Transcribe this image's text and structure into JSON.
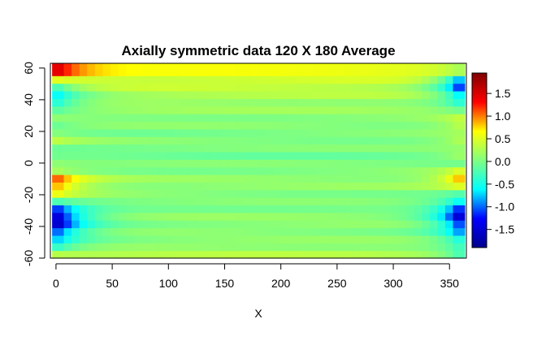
{
  "chart_data": {
    "type": "heatmap",
    "title": "Axially symmetric data 120 X 180 Average",
    "xlabel": "X",
    "ylabel": "",
    "xlim": [
      -5,
      365
    ],
    "ylim": [
      -60,
      63
    ],
    "x_ticks": [
      0,
      50,
      100,
      150,
      200,
      250,
      300,
      350
    ],
    "y_ticks": [
      -60,
      -40,
      -20,
      0,
      20,
      40,
      60
    ],
    "x_tick_labels": [
      "0",
      "50",
      "100",
      "150",
      "200",
      "250",
      "300",
      "350"
    ],
    "y_tick_labels": [
      "-60",
      "-40",
      "-20",
      "0",
      "20",
      "40",
      "60"
    ],
    "x_range": [
      0,
      360
    ],
    "y_range": [
      -60,
      60
    ],
    "grid": false,
    "colorbar": {
      "min": -1.9,
      "max": 1.95,
      "ticks": [
        -1.5,
        -1.0,
        -0.5,
        0.0,
        0.5,
        1.0,
        1.5
      ],
      "tick_labels": [
        "-1.5",
        "-1.0",
        "-0.5",
        "0.0",
        "0.5",
        "1.0",
        "1.5"
      ],
      "colors": [
        "#00008F",
        "#0000FF",
        "#00FFFF",
        "#80FF80",
        "#FFFF00",
        "#FF0000",
        "#800000"
      ]
    },
    "left_edge_profile": [
      {
        "y": 60,
        "v": 1.8
      },
      {
        "y": 55,
        "v": 1.3
      },
      {
        "y": 50,
        "v": -0.3
      },
      {
        "y": 45,
        "v": -0.6
      },
      {
        "y": 40,
        "v": -0.7
      },
      {
        "y": 35,
        "v": -0.3
      },
      {
        "y": 30,
        "v": 0.2
      },
      {
        "y": 25,
        "v": -0.2
      },
      {
        "y": 20,
        "v": 0.1
      },
      {
        "y": 15,
        "v": 0.3
      },
      {
        "y": 10,
        "v": 0.0
      },
      {
        "y": 5,
        "v": -0.1
      },
      {
        "y": 0,
        "v": 0.1
      },
      {
        "y": -5,
        "v": 0.3
      },
      {
        "y": -10,
        "v": 1.2
      },
      {
        "y": -15,
        "v": 1.0
      },
      {
        "y": -20,
        "v": 0.5
      },
      {
        "y": -25,
        "v": -0.4
      },
      {
        "y": -30,
        "v": -1.6
      },
      {
        "y": -35,
        "v": -1.8
      },
      {
        "y": -40,
        "v": -1.7
      },
      {
        "y": -45,
        "v": -1.0
      },
      {
        "y": -50,
        "v": -0.6
      },
      {
        "y": -55,
        "v": -0.4
      },
      {
        "y": -60,
        "v": 1.0
      }
    ],
    "right_edge_profile": [
      {
        "y": 60,
        "v": 1.2
      },
      {
        "y": 55,
        "v": -0.8
      },
      {
        "y": 50,
        "v": -1.5
      },
      {
        "y": 45,
        "v": -1.0
      },
      {
        "y": 40,
        "v": -0.6
      },
      {
        "y": 35,
        "v": -0.2
      },
      {
        "y": 30,
        "v": 0.3
      },
      {
        "y": 25,
        "v": 0.5
      },
      {
        "y": 20,
        "v": 0.1
      },
      {
        "y": 15,
        "v": 0.4
      },
      {
        "y": 10,
        "v": 0.1
      },
      {
        "y": 5,
        "v": 0.2
      },
      {
        "y": 0,
        "v": 0.0
      },
      {
        "y": -5,
        "v": 0.5
      },
      {
        "y": -10,
        "v": 1.1
      },
      {
        "y": -15,
        "v": 0.4
      },
      {
        "y": -20,
        "v": -0.3
      },
      {
        "y": -25,
        "v": -0.8
      },
      {
        "y": -30,
        "v": -1.6
      },
      {
        "y": -35,
        "v": -1.8
      },
      {
        "y": -40,
        "v": -1.2
      },
      {
        "y": -45,
        "v": -0.8
      },
      {
        "y": -50,
        "v": -0.5
      },
      {
        "y": -55,
        "v": -0.2
      },
      {
        "y": -60,
        "v": -0.4
      }
    ],
    "interior_profile": [
      {
        "y": 60,
        "v": 0.6
      },
      {
        "y": 55,
        "v": 0.5
      },
      {
        "y": 50,
        "v": 0.4
      },
      {
        "y": 45,
        "v": 0.3
      },
      {
        "y": 40,
        "v": 0.2
      },
      {
        "y": 35,
        "v": 0.15
      },
      {
        "y": 30,
        "v": 0.1
      },
      {
        "y": 25,
        "v": 0.05
      },
      {
        "y": 20,
        "v": 0.0
      },
      {
        "y": 15,
        "v": 0.05
      },
      {
        "y": 10,
        "v": 0.0
      },
      {
        "y": 5,
        "v": -0.05
      },
      {
        "y": 0,
        "v": 0.0
      },
      {
        "y": -5,
        "v": 0.05
      },
      {
        "y": -10,
        "v": 0.1
      },
      {
        "y": -15,
        "v": 0.1
      },
      {
        "y": -20,
        "v": 0.05
      },
      {
        "y": -25,
        "v": 0.0
      },
      {
        "y": -30,
        "v": 0.05
      },
      {
        "y": -35,
        "v": 0.1
      },
      {
        "y": -40,
        "v": 0.1
      },
      {
        "y": -45,
        "v": 0.05
      },
      {
        "y": -50,
        "v": 0.1
      },
      {
        "y": -55,
        "v": 0.2
      },
      {
        "y": -60,
        "v": 0.3
      }
    ]
  }
}
